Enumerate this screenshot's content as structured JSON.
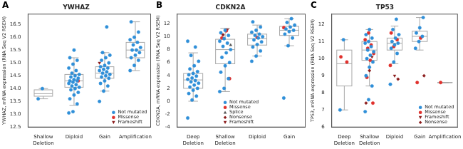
{
  "chart_data": [
    {
      "type": "box",
      "annotations": [
        "A"
      ],
      "title": "YWHAZ",
      "y_label": "YWHAZ, mRNA expression (RNA Seq V2 RSEM)",
      "categories": [
        "Shallow Deletion",
        "Diploid",
        "Gain",
        "Amplification"
      ],
      "ylim": [
        12.5,
        16.9
      ],
      "yticks": [
        12.5,
        {
          "value": 13,
          "label": "13.0"
        },
        13.5,
        {
          "value": 14,
          "label": "14.0"
        },
        14.5,
        {
          "value": 15,
          "label": "15.0"
        },
        15.5,
        {
          "value": 16,
          "label": "16.0"
        },
        16.5
      ],
      "grid": false,
      "legend": "lower right",
      "boxes": [
        {
          "whisker_low": 13.6,
          "q1": 13.7,
          "median": 13.8,
          "q3": 13.95,
          "whisker_high": 14.0
        },
        {
          "whisker_low": 13.35,
          "q1": 14.05,
          "median": 14.3,
          "q3": 14.55,
          "whisker_high": 15.2
        },
        {
          "whisker_low": 13.9,
          "q1": 14.4,
          "median": 14.6,
          "q3": 14.85,
          "whisker_high": 15.4
        },
        {
          "whisker_low": 14.7,
          "q1": 15.2,
          "median": 15.5,
          "q3": 15.8,
          "whisker_high": 16.6
        }
      ],
      "series": [
        {
          "name": "Not mutated",
          "color": "#2f8fd8",
          "marker": "circle",
          "values": [
            [
              13.6,
              14.0
            ],
            [
              13.05,
              13.1,
              13.4,
              13.6,
              13.75,
              13.85,
              13.95,
              14.0,
              14.05,
              14.1,
              14.15,
              14.2,
              14.25,
              14.3,
              14.3,
              14.35,
              14.4,
              14.45,
              14.5,
              14.55,
              14.6,
              14.7,
              14.8,
              14.95,
              15.1,
              15.2,
              15.5
            ],
            [
              13.5,
              13.9,
              14.1,
              14.2,
              14.3,
              14.4,
              14.45,
              14.5,
              14.55,
              14.6,
              14.65,
              14.7,
              14.75,
              14.8,
              14.85,
              14.9,
              15.0,
              15.1,
              15.2,
              15.3,
              15.4,
              16.4
            ],
            [
              14.7,
              14.9,
              15.1,
              15.2,
              15.3,
              15.4,
              15.5,
              15.5,
              15.6,
              15.7,
              15.8,
              15.9,
              16.0,
              16.2,
              16.6
            ]
          ]
        },
        {
          "name": "Missense",
          "color": "#e0302c",
          "marker": "circle",
          "values": [
            [],
            [
              14.3
            ],
            [],
            []
          ]
        },
        {
          "name": "Frameshift",
          "color": "#8b1a1a",
          "marker": "triangle_down",
          "values": [
            [],
            [],
            [
              15.0
            ],
            []
          ]
        }
      ]
    },
    {
      "type": "box",
      "annotations": [
        "B"
      ],
      "title": "CDKN2A",
      "y_label": "CDKN2A, mRNA expression (RNA Seq V2 RSEM)",
      "categories": [
        "Deep Deletion",
        "Shallow Deletion",
        "Diploid",
        "Gain"
      ],
      "ylim": [
        -4,
        13.5
      ],
      "yticks": [
        -4,
        -2,
        0,
        2,
        4,
        6,
        8,
        10,
        12
      ],
      "grid": false,
      "legend": "lower center",
      "boxes": [
        {
          "whisker_low": 0.0,
          "q1": 2.0,
          "median": 3.3,
          "q3": 4.3,
          "whisker_high": 7.5
        },
        {
          "whisker_low": 1.5,
          "q1": 5.8,
          "median": 8.0,
          "q3": 9.6,
          "whisker_high": 11.3
        },
        {
          "whisker_low": 7.0,
          "q1": 8.7,
          "median": 9.7,
          "q3": 10.4,
          "whisker_high": 11.8
        },
        {
          "whisker_low": 8.6,
          "q1": 10.2,
          "median": 11.0,
          "q3": 11.6,
          "whisker_high": 12.8
        }
      ],
      "series": [
        {
          "name": "Not mutated",
          "color": "#2f8fd8",
          "marker": "circle",
          "values": [
            [
              -2.6,
              0.2,
              0.8,
              1.2,
              1.7,
              2.0,
              2.2,
              2.5,
              2.8,
              3.0,
              3.2,
              3.4,
              3.6,
              3.9,
              4.1,
              4.3,
              4.6,
              5.0,
              5.5,
              6.2,
              7.1,
              8.4,
              9.3
            ],
            [
              1.5,
              2.0,
              3.5,
              4.5,
              5.5,
              6.0,
              6.8,
              7.5,
              8.0,
              8.5,
              9.0,
              9.3,
              9.7,
              10.2,
              10.6,
              11.0
            ],
            [
              6.2,
              7.0,
              7.8,
              8.4,
              8.8,
              9.2,
              9.5,
              9.8,
              10.0,
              10.2,
              10.4,
              10.7,
              11.0,
              11.5,
              12.3
            ],
            [
              0.5,
              8.6,
              9.8,
              10.4,
              10.8,
              11.0,
              11.2,
              11.5,
              11.8,
              12.2,
              12.8
            ]
          ]
        },
        {
          "name": "Missense",
          "color": "#e0302c",
          "marker": "circle",
          "values": [
            [],
            [
              3.5,
              9.8,
              10.9
            ],
            [
              9.9
            ],
            [
              11.4
            ]
          ]
        },
        {
          "name": "Splice",
          "color": "#555555",
          "marker": "triangle",
          "values": [
            [],
            [
              8.7
            ],
            [],
            []
          ]
        },
        {
          "name": "Nonsense",
          "color": "#8b1a1a",
          "marker": "diamond",
          "values": [
            [],
            [
              10.3
            ],
            [],
            []
          ]
        },
        {
          "name": "Frameshift",
          "color": "#8b1a1a",
          "marker": "triangle_down",
          "values": [
            [],
            [
              11.1
            ],
            [],
            []
          ]
        }
      ]
    },
    {
      "type": "box",
      "annotations": [
        "C"
      ],
      "title": "TP53",
      "y_label": "TP53, mRNA expression (RNA Seq V2 RSEM)",
      "categories": [
        "Deep Deletion",
        "Shallow Deletion",
        "Diploid",
        "Gain",
        "Amplification"
      ],
      "ylim": [
        6,
        12.6
      ],
      "yticks": [
        6,
        7,
        8,
        9,
        10,
        11,
        12
      ],
      "grid": false,
      "legend": "lower right",
      "boxes": [
        {
          "whisker_low": 7.0,
          "q1": 8.4,
          "median": 9.7,
          "q3": 10.5,
          "whisker_high": 11.1
        },
        {
          "whisker_low": 8.4,
          "q1": 9.9,
          "median": 10.5,
          "q3": 11.0,
          "whisker_high": 11.7
        },
        {
          "whisker_low": 9.7,
          "q1": 10.5,
          "median": 10.9,
          "q3": 11.2,
          "whisker_high": 11.9
        },
        {
          "whisker_low": 10.5,
          "q1": 11.0,
          "median": 11.3,
          "q3": 11.6,
          "whisker_high": 12.4
        },
        {
          "whisker_low": 8.6,
          "q1": 8.6,
          "median": 8.6,
          "q3": 8.6,
          "whisker_high": 8.6
        }
      ],
      "series": [
        {
          "name": "Not mutated",
          "color": "#2f8fd8",
          "marker": "circle",
          "values": [
            [
              7.0,
              11.1
            ],
            [
              6.9,
              7.6,
              8.4,
              9.0,
              9.5,
              9.8,
              10.0,
              10.2,
              10.4,
              10.5,
              10.7,
              10.9,
              11.0,
              11.2,
              11.4,
              11.7
            ],
            [
              8.5,
              9.8,
              10.3,
              10.6,
              10.8,
              10.9,
              11.0,
              11.2,
              11.4,
              11.7,
              12.3
            ],
            [
              10.6,
              11.0,
              11.3,
              11.5,
              11.8,
              12.4
            ],
            []
          ]
        },
        {
          "name": "Missense",
          "color": "#e0302c",
          "marker": "circle",
          "values": [
            [
              9.8,
              10.1
            ],
            [
              7.4,
              8.9,
              9.9,
              10.3,
              10.6,
              10.8,
              11.1,
              11.5
            ],
            [
              9.6,
              10.7,
              11.1,
              11.5
            ],
            [
              8.6,
              11.2
            ],
            [
              8.6
            ]
          ]
        },
        {
          "name": "Frameshift",
          "color": "#8b1a1a",
          "marker": "triangle_down",
          "values": [
            [],
            [
              10.1
            ],
            [
              9.0
            ],
            [],
            []
          ]
        },
        {
          "name": "Nonsense",
          "color": "#8b1a1a",
          "marker": "diamond",
          "values": [
            [],
            [
              7.4,
              9.3
            ],
            [
              8.8
            ],
            [
              9.0
            ],
            []
          ]
        }
      ]
    }
  ]
}
